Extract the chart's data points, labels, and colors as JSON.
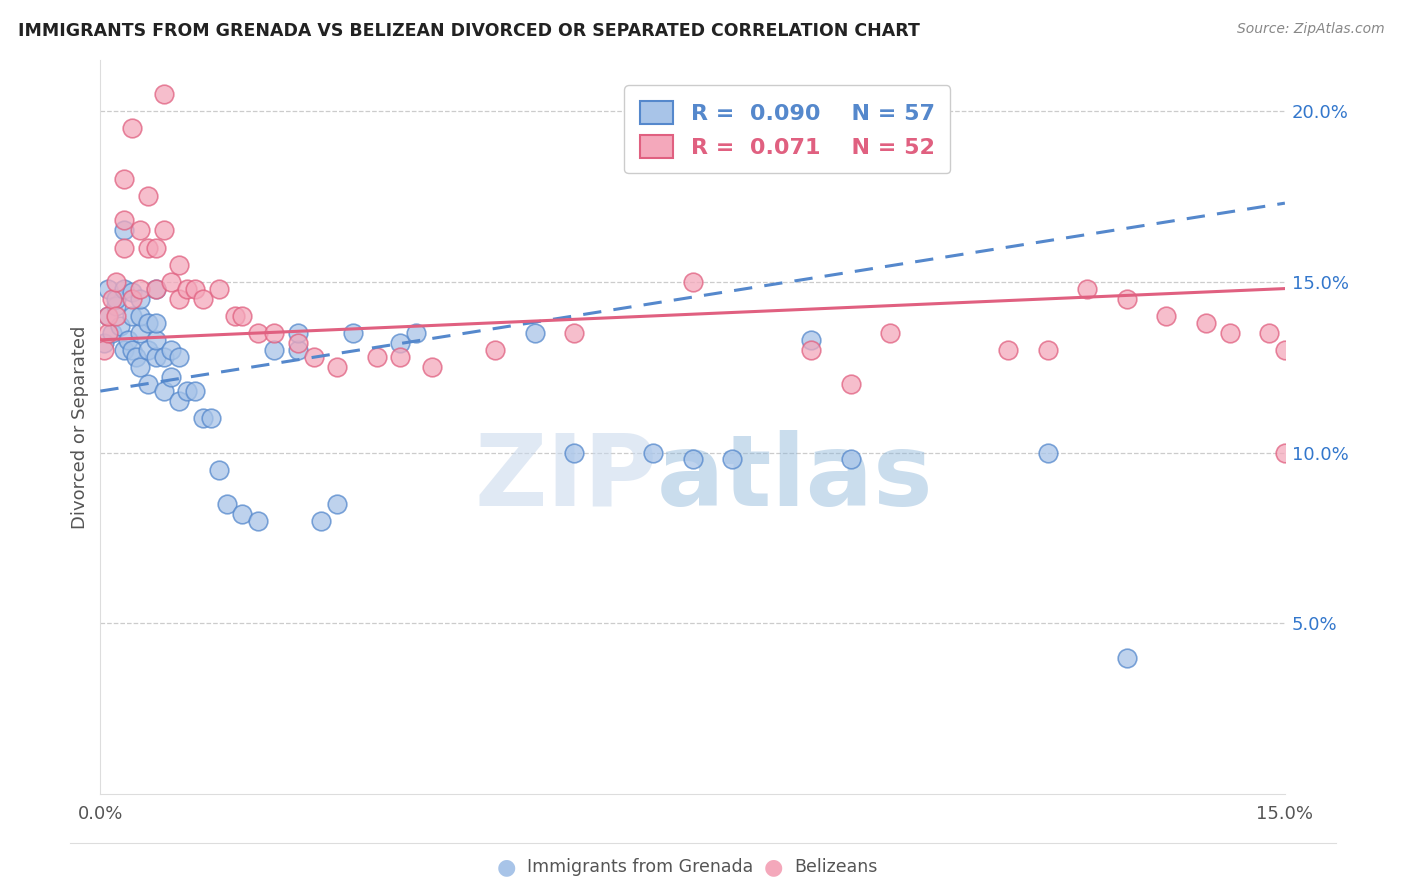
{
  "title": "IMMIGRANTS FROM GRENADA VS BELIZEAN DIVORCED OR SEPARATED CORRELATION CHART",
  "source": "Source: ZipAtlas.com",
  "ylabel": "Divorced or Separated",
  "legend_blue_r": "0.090",
  "legend_blue_n": "57",
  "legend_pink_r": "0.071",
  "legend_pink_n": "52",
  "blue_color": "#a8c4e8",
  "pink_color": "#f4a8bb",
  "blue_line_color": "#5588cc",
  "pink_line_color": "#e06080",
  "watermark_zip": "ZIP",
  "watermark_atlas": "atlas",
  "xlim": [
    0.0,
    0.15
  ],
  "ylim": [
    0.0,
    0.215
  ],
  "blue_x": [
    0.0005,
    0.001,
    0.001,
    0.0015,
    0.002,
    0.002,
    0.0025,
    0.003,
    0.003,
    0.003,
    0.0035,
    0.004,
    0.004,
    0.004,
    0.0045,
    0.005,
    0.005,
    0.005,
    0.005,
    0.006,
    0.006,
    0.006,
    0.007,
    0.007,
    0.007,
    0.007,
    0.008,
    0.008,
    0.009,
    0.009,
    0.01,
    0.01,
    0.011,
    0.012,
    0.013,
    0.014,
    0.015,
    0.016,
    0.018,
    0.02,
    0.022,
    0.025,
    0.025,
    0.028,
    0.03,
    0.032,
    0.038,
    0.04,
    0.055,
    0.06,
    0.07,
    0.075,
    0.08,
    0.09,
    0.095,
    0.12,
    0.13
  ],
  "blue_y": [
    0.132,
    0.14,
    0.148,
    0.135,
    0.143,
    0.145,
    0.137,
    0.13,
    0.148,
    0.165,
    0.133,
    0.13,
    0.14,
    0.147,
    0.128,
    0.125,
    0.135,
    0.14,
    0.145,
    0.12,
    0.13,
    0.138,
    0.128,
    0.133,
    0.138,
    0.148,
    0.118,
    0.128,
    0.122,
    0.13,
    0.115,
    0.128,
    0.118,
    0.118,
    0.11,
    0.11,
    0.095,
    0.085,
    0.082,
    0.08,
    0.13,
    0.13,
    0.135,
    0.08,
    0.085,
    0.135,
    0.132,
    0.135,
    0.135,
    0.1,
    0.1,
    0.098,
    0.098,
    0.133,
    0.098,
    0.1,
    0.04
  ],
  "pink_x": [
    0.0005,
    0.001,
    0.001,
    0.0015,
    0.002,
    0.002,
    0.003,
    0.003,
    0.003,
    0.004,
    0.004,
    0.005,
    0.005,
    0.006,
    0.006,
    0.007,
    0.007,
    0.008,
    0.008,
    0.009,
    0.01,
    0.01,
    0.011,
    0.012,
    0.013,
    0.015,
    0.017,
    0.018,
    0.02,
    0.022,
    0.025,
    0.027,
    0.03,
    0.035,
    0.038,
    0.042,
    0.05,
    0.06,
    0.075,
    0.09,
    0.095,
    0.1,
    0.115,
    0.12,
    0.125,
    0.13,
    0.135,
    0.14,
    0.143,
    0.148,
    0.15,
    0.15
  ],
  "pink_y": [
    0.13,
    0.135,
    0.14,
    0.145,
    0.14,
    0.15,
    0.16,
    0.168,
    0.18,
    0.145,
    0.195,
    0.148,
    0.165,
    0.16,
    0.175,
    0.148,
    0.16,
    0.165,
    0.205,
    0.15,
    0.145,
    0.155,
    0.148,
    0.148,
    0.145,
    0.148,
    0.14,
    0.14,
    0.135,
    0.135,
    0.132,
    0.128,
    0.125,
    0.128,
    0.128,
    0.125,
    0.13,
    0.135,
    0.15,
    0.13,
    0.12,
    0.135,
    0.13,
    0.13,
    0.148,
    0.145,
    0.14,
    0.138,
    0.135,
    0.135,
    0.13,
    0.1
  ],
  "blue_trend_x": [
    0.0,
    0.15
  ],
  "blue_trend_y": [
    0.118,
    0.173
  ],
  "pink_trend_x": [
    0.0,
    0.15
  ],
  "pink_trend_y": [
    0.133,
    0.148
  ]
}
